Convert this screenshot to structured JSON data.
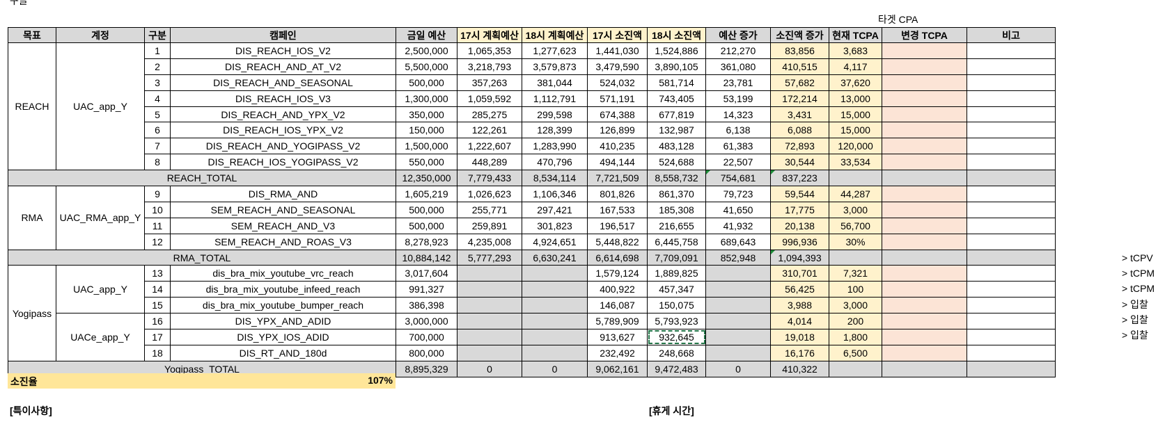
{
  "top_label": "구글",
  "target_cpa_label": "타겟 CPA",
  "headers": [
    "목표",
    "계정",
    "구분",
    "캠페인",
    "금일 예산",
    "17시 계획예산",
    "18시 계획예산",
    "17시 소진액",
    "18시 소진액",
    "예산 증가",
    "소진액 증가",
    "현재 TCPA",
    "변경 TCPA",
    "비고"
  ],
  "groups": {
    "reach": {
      "goal": "REACH",
      "account": "UAC_app_Y"
    },
    "rma": {
      "goal": "RMA",
      "account": "UAC_RMA_app_Y"
    },
    "yogipass": {
      "goal": "Yogipass",
      "account1": "UAC_app_Y",
      "account2": "UACe_app_Y"
    }
  },
  "rows": [
    [
      "1",
      "DIS_REACH_IOS_V2",
      "2,500,000",
      "1,065,353",
      "1,277,623",
      "1,441,030",
      "1,524,886",
      "212,270",
      "83,856",
      "3,683"
    ],
    [
      "2",
      "DIS_REACH_AND_AT_V2",
      "5,500,000",
      "3,218,793",
      "3,579,873",
      "3,479,590",
      "3,890,105",
      "361,080",
      "410,515",
      "4,117"
    ],
    [
      "3",
      "DIS_REACH_AND_SEASONAL",
      "500,000",
      "357,263",
      "381,044",
      "524,032",
      "581,714",
      "23,781",
      "57,682",
      "37,620"
    ],
    [
      "4",
      "DIS_REACH_IOS_V3",
      "1,300,000",
      "1,059,592",
      "1,112,791",
      "571,191",
      "743,405",
      "53,199",
      "172,214",
      "13,000"
    ],
    [
      "5",
      "DIS_REACH_AND_YPX_V2",
      "350,000",
      "285,275",
      "299,598",
      "674,388",
      "677,819",
      "14,323",
      "3,431",
      "15,000"
    ],
    [
      "6",
      "DIS_REACH_IOS_YPX_V2",
      "150,000",
      "122,261",
      "128,399",
      "126,899",
      "132,987",
      "6,138",
      "6,088",
      "15,000"
    ],
    [
      "7",
      "DIS_REACH_AND_YOGIPASS_V2",
      "1,500,000",
      "1,222,607",
      "1,283,990",
      "410,235",
      "483,128",
      "61,383",
      "72,893",
      "120,000"
    ],
    [
      "8",
      "DIS_REACH_IOS_YOGIPASS_V2",
      "550,000",
      "448,289",
      "470,796",
      "494,144",
      "524,688",
      "22,507",
      "30,544",
      "33,534"
    ],
    [
      "9",
      "DIS_RMA_AND",
      "1,605,219",
      "1,026,623",
      "1,106,346",
      "801,826",
      "861,370",
      "79,723",
      "59,544",
      "44,287"
    ],
    [
      "10",
      "SEM_REACH_AND_SEASONAL",
      "500,000",
      "255,771",
      "297,421",
      "167,533",
      "185,308",
      "41,650",
      "17,775",
      "3,000"
    ],
    [
      "11",
      "SEM_REACH_AND_V3",
      "500,000",
      "259,891",
      "301,823",
      "196,517",
      "216,655",
      "41,932",
      "20,138",
      "56,700"
    ],
    [
      "12",
      "SEM_REACH_AND_ROAS_V3",
      "8,278,923",
      "4,235,008",
      "4,924,651",
      "5,448,822",
      "6,445,758",
      "689,643",
      "996,936",
      "30%"
    ],
    [
      "13",
      "dis_bra_mix_youtube_vrc_reach",
      "3,017,604",
      "",
      "",
      "1,579,124",
      "1,889,825",
      "",
      "310,701",
      "7,321"
    ],
    [
      "14",
      "dis_bra_mix_youtube_infeed_reach",
      "991,327",
      "",
      "",
      "400,922",
      "457,347",
      "",
      "56,425",
      "100"
    ],
    [
      "15",
      "dis_bra_mix_youtube_bumper_reach",
      "386,398",
      "",
      "",
      "146,087",
      "150,075",
      "",
      "3,988",
      "3,000"
    ],
    [
      "16",
      "DIS_YPX_AND_ADID",
      "3,000,000",
      "",
      "",
      "5,789,909",
      "5,793,923",
      "",
      "4,014",
      "200"
    ],
    [
      "17",
      "DIS_YPX_IOS_ADID",
      "700,000",
      "",
      "",
      "913,627",
      "932,645",
      "",
      "19,018",
      "1,800"
    ],
    [
      "18",
      "DIS_RT_AND_180d",
      "800,000",
      "",
      "",
      "232,492",
      "248,668",
      "",
      "16,176",
      "6,500"
    ]
  ],
  "totals": {
    "reach": [
      "REACH_TOTAL",
      "12,350,000",
      "7,779,433",
      "8,534,114",
      "7,721,509",
      "8,558,732",
      "754,681",
      "837,223"
    ],
    "rma": [
      "RMA_TOTAL",
      "10,884,142",
      "5,777,293",
      "6,630,241",
      "6,614,698",
      "7,709,091",
      "852,948",
      "1,094,393"
    ],
    "yogipass": [
      "Yogipass_TOTAL",
      "8,895,329",
      "0",
      "0",
      "9,062,161",
      "9,472,483",
      "0",
      "410,322"
    ]
  },
  "side_notes": [
    "> tCPV",
    "> tCPM",
    "> tCPM",
    "> 입찰",
    "> 입찰",
    "> 입찰"
  ],
  "burn_rate": {
    "label": "소진율",
    "value": "107%"
  },
  "notes_label": "[특이사항]",
  "break_label": "[휴게 시간]"
}
